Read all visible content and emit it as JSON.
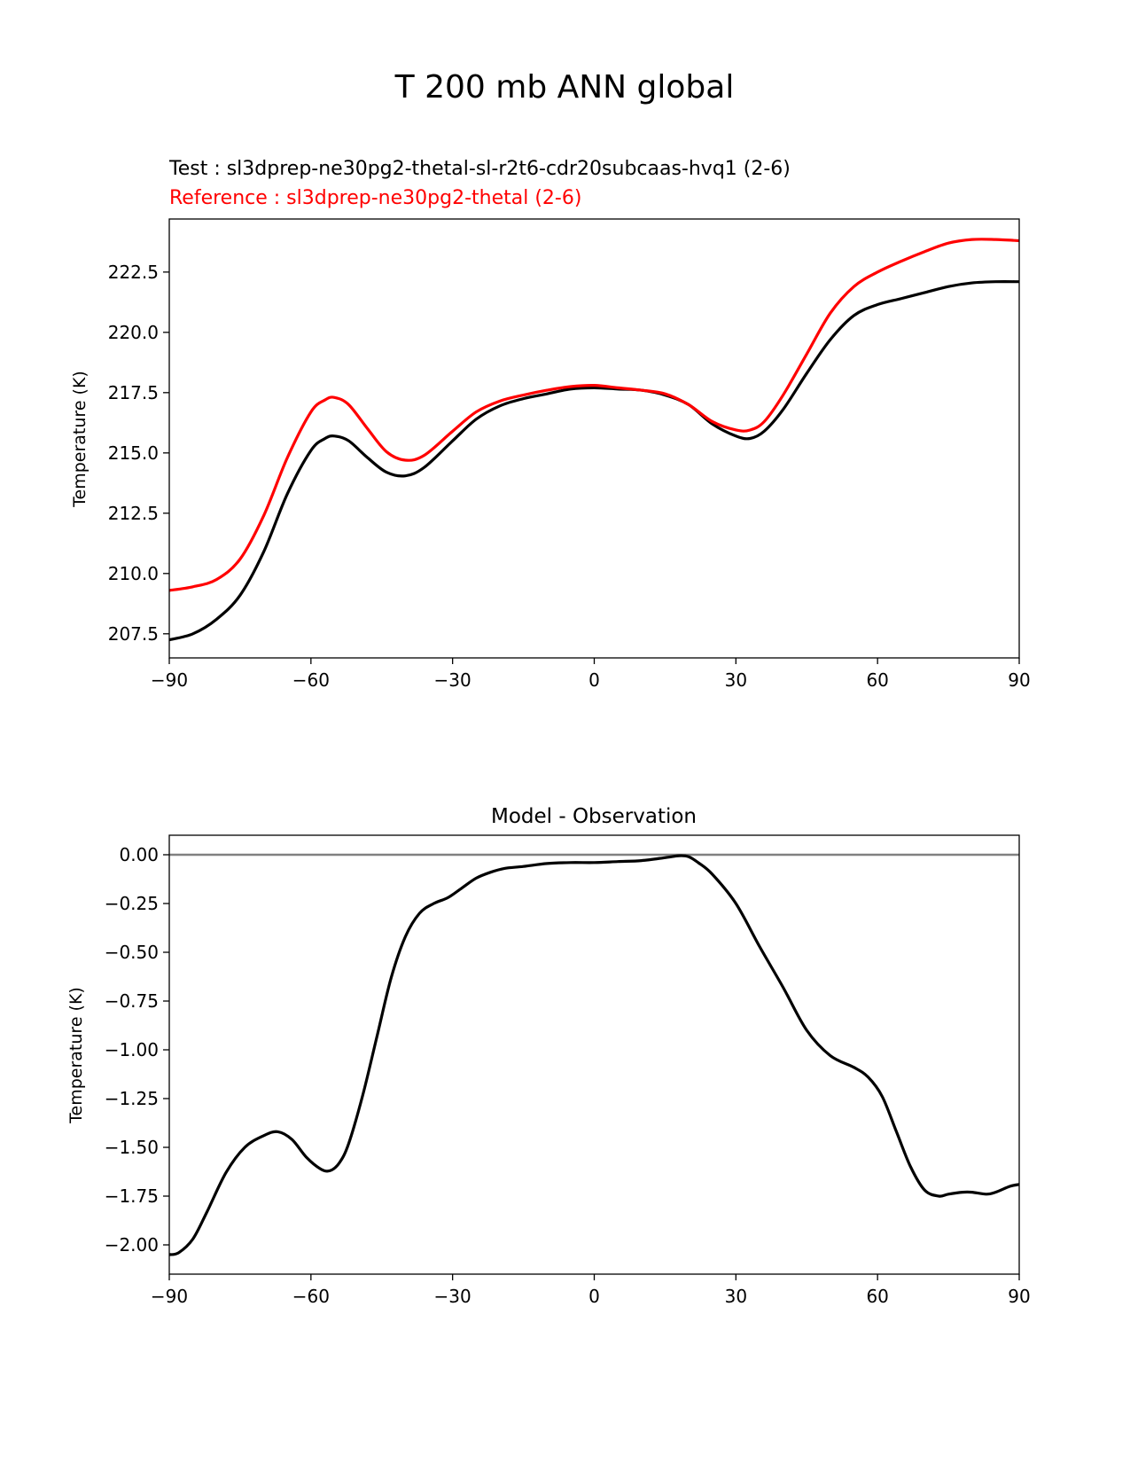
{
  "figure_title": "T 200 mb ANN global",
  "chart_data": [
    {
      "type": "line",
      "test_label": "Test : sl3dprep-ne30pg2-thetal-sl-r2t6-cdr20subcaas-hvq1 (2-6)",
      "reference_label": "Reference : sl3dprep-ne30pg2-thetal (2-6)",
      "ylabel": "Temperature (K)",
      "xlim": [
        -90,
        90
      ],
      "ylim": [
        206.5,
        224.7
      ],
      "xticks": [
        -90,
        -60,
        -30,
        0,
        30,
        60,
        90
      ],
      "xtick_labels": [
        "−90",
        "−60",
        "−30",
        "0",
        "30",
        "60",
        "90"
      ],
      "yticks": [
        207.5,
        210.0,
        212.5,
        215.0,
        217.5,
        220.0,
        222.5
      ],
      "ytick_labels": [
        "207.5",
        "210.0",
        "212.5",
        "215.0",
        "217.5",
        "220.0",
        "222.5"
      ],
      "colors": {
        "test": "#000000",
        "reference": "#ff0000"
      },
      "series": [
        {
          "name": "Test",
          "color": "#000000",
          "x": [
            -90,
            -85,
            -80,
            -75,
            -70,
            -65,
            -60,
            -57,
            -55,
            -52,
            -48,
            -44,
            -40,
            -36,
            -30,
            -25,
            -20,
            -15,
            -10,
            -5,
            0,
            5,
            10,
            15,
            20,
            25,
            30,
            33,
            36,
            40,
            45,
            50,
            55,
            60,
            65,
            70,
            75,
            80,
            85,
            90
          ],
          "y": [
            207.25,
            207.5,
            208.1,
            209.1,
            210.9,
            213.3,
            215.1,
            215.6,
            215.7,
            215.5,
            214.8,
            214.2,
            214.05,
            214.4,
            215.5,
            216.4,
            216.95,
            217.25,
            217.45,
            217.65,
            217.7,
            217.65,
            217.6,
            217.4,
            217.0,
            216.2,
            215.7,
            215.6,
            215.9,
            216.8,
            218.3,
            219.7,
            220.7,
            221.15,
            221.4,
            221.65,
            221.9,
            222.05,
            222.1,
            222.1
          ]
        },
        {
          "name": "Reference",
          "color": "#ff0000",
          "x": [
            -90,
            -85,
            -80,
            -75,
            -70,
            -65,
            -60,
            -57,
            -55,
            -52,
            -48,
            -44,
            -40,
            -36,
            -30,
            -25,
            -20,
            -15,
            -10,
            -5,
            0,
            5,
            10,
            15,
            20,
            25,
            30,
            33,
            36,
            40,
            45,
            50,
            55,
            60,
            65,
            70,
            75,
            80,
            85,
            90
          ],
          "y": [
            209.3,
            209.45,
            209.75,
            210.6,
            212.4,
            214.8,
            216.7,
            217.2,
            217.3,
            217.0,
            216.0,
            215.05,
            214.7,
            214.9,
            215.9,
            216.7,
            217.15,
            217.4,
            217.6,
            217.75,
            217.8,
            217.7,
            217.6,
            217.45,
            217.0,
            216.3,
            215.95,
            215.95,
            216.3,
            217.4,
            219.1,
            220.8,
            221.9,
            222.5,
            222.95,
            223.35,
            223.7,
            223.85,
            223.85,
            223.8
          ]
        }
      ]
    },
    {
      "type": "line",
      "title": "Model - Observation",
      "ylabel": "Temperature (K)",
      "xlim": [
        -90,
        90
      ],
      "ylim": [
        -2.15,
        0.1
      ],
      "xticks": [
        -90,
        -60,
        -30,
        0,
        30,
        60,
        90
      ],
      "xtick_labels": [
        "−90",
        "−60",
        "−30",
        "0",
        "30",
        "60",
        "90"
      ],
      "yticks": [
        0.0,
        -0.25,
        -0.5,
        -0.75,
        -1.0,
        -1.25,
        -1.5,
        -1.75,
        -2.0
      ],
      "ytick_labels": [
        "0.00",
        "−0.25",
        "−0.50",
        "−0.75",
        "−1.00",
        "−1.25",
        "−1.50",
        "−1.75",
        "−2.00"
      ],
      "zero_line_color": "#808080",
      "series": [
        {
          "name": "Model - Observation",
          "color": "#000000",
          "x": [
            -90,
            -88,
            -85,
            -82,
            -78,
            -74,
            -70,
            -67,
            -64,
            -61,
            -58,
            -56,
            -54,
            -52,
            -49,
            -46,
            -43,
            -40,
            -37,
            -34,
            -31,
            -28,
            -25,
            -22,
            -19,
            -15,
            -10,
            -5,
            0,
            5,
            10,
            15,
            18,
            20,
            22,
            25,
            30,
            35,
            40,
            45,
            50,
            55,
            58,
            61,
            64,
            67,
            70,
            73,
            75,
            78,
            80,
            83,
            85,
            88,
            90
          ],
          "y": [
            -2.05,
            -2.04,
            -1.97,
            -1.83,
            -1.63,
            -1.5,
            -1.44,
            -1.42,
            -1.46,
            -1.55,
            -1.61,
            -1.62,
            -1.58,
            -1.48,
            -1.23,
            -0.93,
            -0.63,
            -0.42,
            -0.3,
            -0.25,
            -0.22,
            -0.17,
            -0.12,
            -0.09,
            -0.07,
            -0.06,
            -0.045,
            -0.04,
            -0.04,
            -0.035,
            -0.03,
            -0.015,
            -0.005,
            -0.01,
            -0.04,
            -0.1,
            -0.25,
            -0.47,
            -0.68,
            -0.9,
            -1.03,
            -1.09,
            -1.14,
            -1.24,
            -1.42,
            -1.6,
            -1.72,
            -1.75,
            -1.74,
            -1.73,
            -1.73,
            -1.74,
            -1.73,
            -1.7,
            -1.69
          ]
        }
      ]
    }
  ]
}
